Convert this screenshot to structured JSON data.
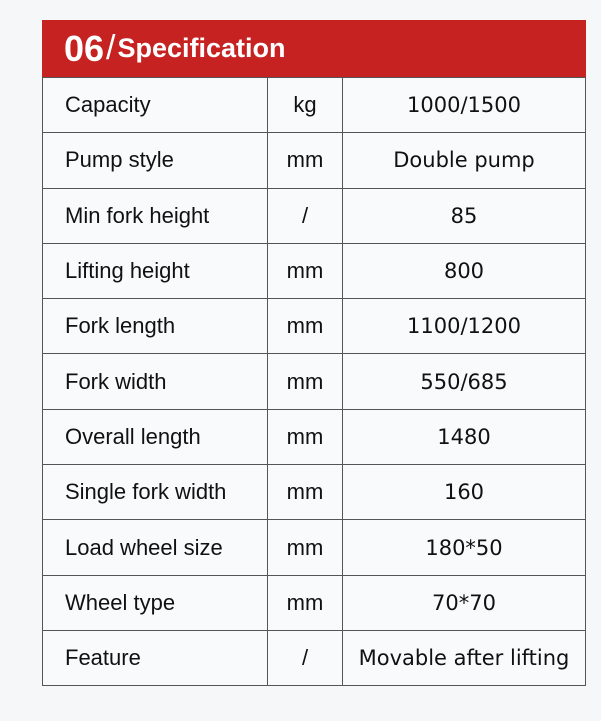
{
  "header": {
    "number": "06",
    "separator": "/",
    "title": "Specification",
    "color": "#c62222"
  },
  "rows": [
    {
      "name": "Capacity",
      "unit": "kg",
      "value": "1000/1500"
    },
    {
      "name": "Pump style",
      "unit": "mm",
      "value": "Double pump"
    },
    {
      "name": "Min fork height",
      "unit": "/",
      "value": "85"
    },
    {
      "name": "Lifting height",
      "unit": "mm",
      "value": "800"
    },
    {
      "name": "Fork length",
      "unit": "mm",
      "value": "1100/1200"
    },
    {
      "name": "Fork width",
      "unit": "mm",
      "value": "550/685"
    },
    {
      "name": "Overall length",
      "unit": "mm",
      "value": "1480"
    },
    {
      "name": "Single fork width",
      "unit": "mm",
      "value": "160"
    },
    {
      "name": "Load wheel size",
      "unit": "mm",
      "value": "180*50"
    },
    {
      "name": "Wheel type",
      "unit": "mm",
      "value": "70*70"
    },
    {
      "name": "Feature",
      "unit": "/",
      "value": "Movable after lifting"
    }
  ]
}
